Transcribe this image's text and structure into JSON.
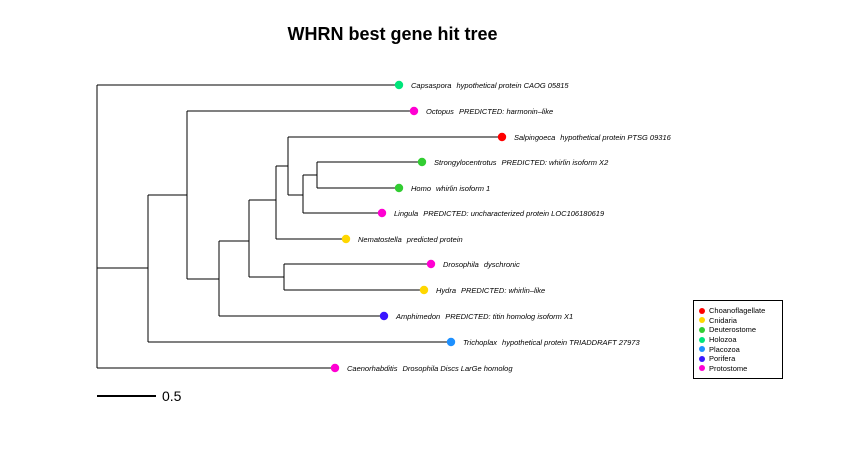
{
  "title": "WHRN best gene hit tree",
  "scale": {
    "label": "0.5"
  },
  "legend": [
    {
      "name": "Choanoflagellate",
      "color": "#ff0000"
    },
    {
      "name": "Cnidaria",
      "color": "#ffd700"
    },
    {
      "name": "Deuterostome",
      "color": "#32cd32"
    },
    {
      "name": "Holozoa",
      "color": "#00e57a"
    },
    {
      "name": "Placozoa",
      "color": "#1e90ff"
    },
    {
      "name": "Porifera",
      "color": "#3a16ff"
    },
    {
      "name": "Protostome",
      "color": "#ff00d2"
    }
  ],
  "leaves": [
    {
      "genus": "Capsaspora",
      "desc": "hypothetical protein CAOG 05815",
      "group": "Holozoa"
    },
    {
      "genus": "Octopus",
      "desc": "PREDICTED: harmonin–like",
      "group": "Protostome"
    },
    {
      "genus": "Salpingoeca",
      "desc": "hypothetical protein PTSG 09316",
      "group": "Choanoflagellate"
    },
    {
      "genus": "Strongylocentrotus",
      "desc": "PREDICTED: whirlin isoform X2",
      "group": "Deuterostome"
    },
    {
      "genus": "Homo",
      "desc": "whirlin isoform 1",
      "group": "Deuterostome"
    },
    {
      "genus": "Lingula",
      "desc": "PREDICTED: uncharacterized protein LOC106180619",
      "group": "Protostome"
    },
    {
      "genus": "Nematostella",
      "desc": "predicted protein",
      "group": "Cnidaria"
    },
    {
      "genus": "Drosophila",
      "desc": "dyschronic",
      "group": "Protostome"
    },
    {
      "genus": "Hydra",
      "desc": "PREDICTED: whirlin–like",
      "group": "Cnidaria"
    },
    {
      "genus": "Amphimedon",
      "desc": "PREDICTED: titin homolog isoform X1",
      "group": "Porifera"
    },
    {
      "genus": "Trichoplax",
      "desc": "hypothetical protein TRIADDRAFT 27973",
      "group": "Placozoa"
    },
    {
      "genus": "Caenorhabditis",
      "desc": "Drosophila Discs LarGe homolog",
      "group": "Protostome"
    }
  ]
}
